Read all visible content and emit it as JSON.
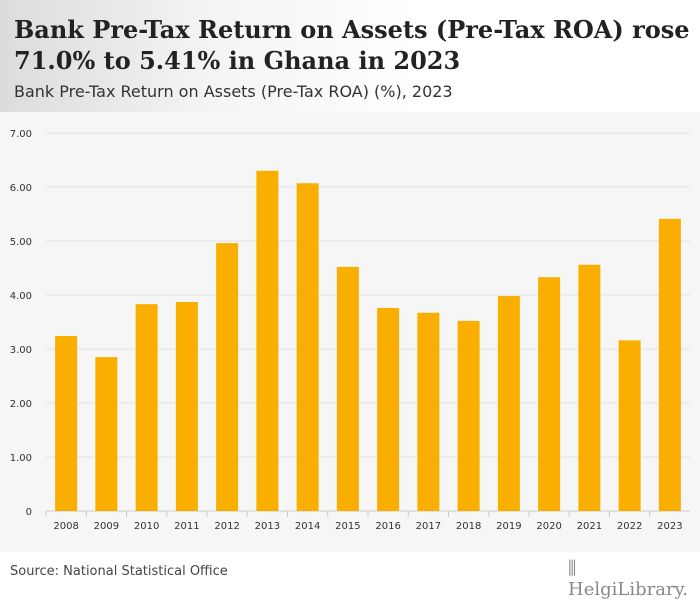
{
  "header": {
    "title": "Bank Pre-Tax Return on Assets (Pre-Tax ROA) rose 71.0% to 5.41% in Ghana in 2023",
    "subtitle": "Bank Pre-Tax Return on Assets (Pre-Tax ROA) (%), 2023"
  },
  "footer": {
    "source": "Source: National Statistical Office",
    "logo": "HelgiLibrary."
  },
  "chart_data": {
    "type": "bar",
    "title": "Bank Pre-Tax Return on Assets (Pre-Tax ROA) (%), 2023",
    "xlabel": "",
    "ylabel": "",
    "categories": [
      "2008",
      "2009",
      "2010",
      "2011",
      "2012",
      "2013",
      "2014",
      "2015",
      "2016",
      "2017",
      "2018",
      "2019",
      "2020",
      "2021",
      "2022",
      "2023"
    ],
    "values": [
      3.24,
      2.85,
      3.83,
      3.87,
      4.96,
      6.3,
      6.07,
      4.52,
      3.76,
      3.67,
      3.52,
      3.98,
      4.33,
      4.56,
      3.16,
      5.41
    ],
    "ylim": [
      0,
      7
    ],
    "yticks": [
      "0",
      "1.00",
      "2.00",
      "3.00",
      "4.00",
      "5.00",
      "6.00",
      "7.00"
    ],
    "grid": true,
    "color": "#f9ae00"
  }
}
